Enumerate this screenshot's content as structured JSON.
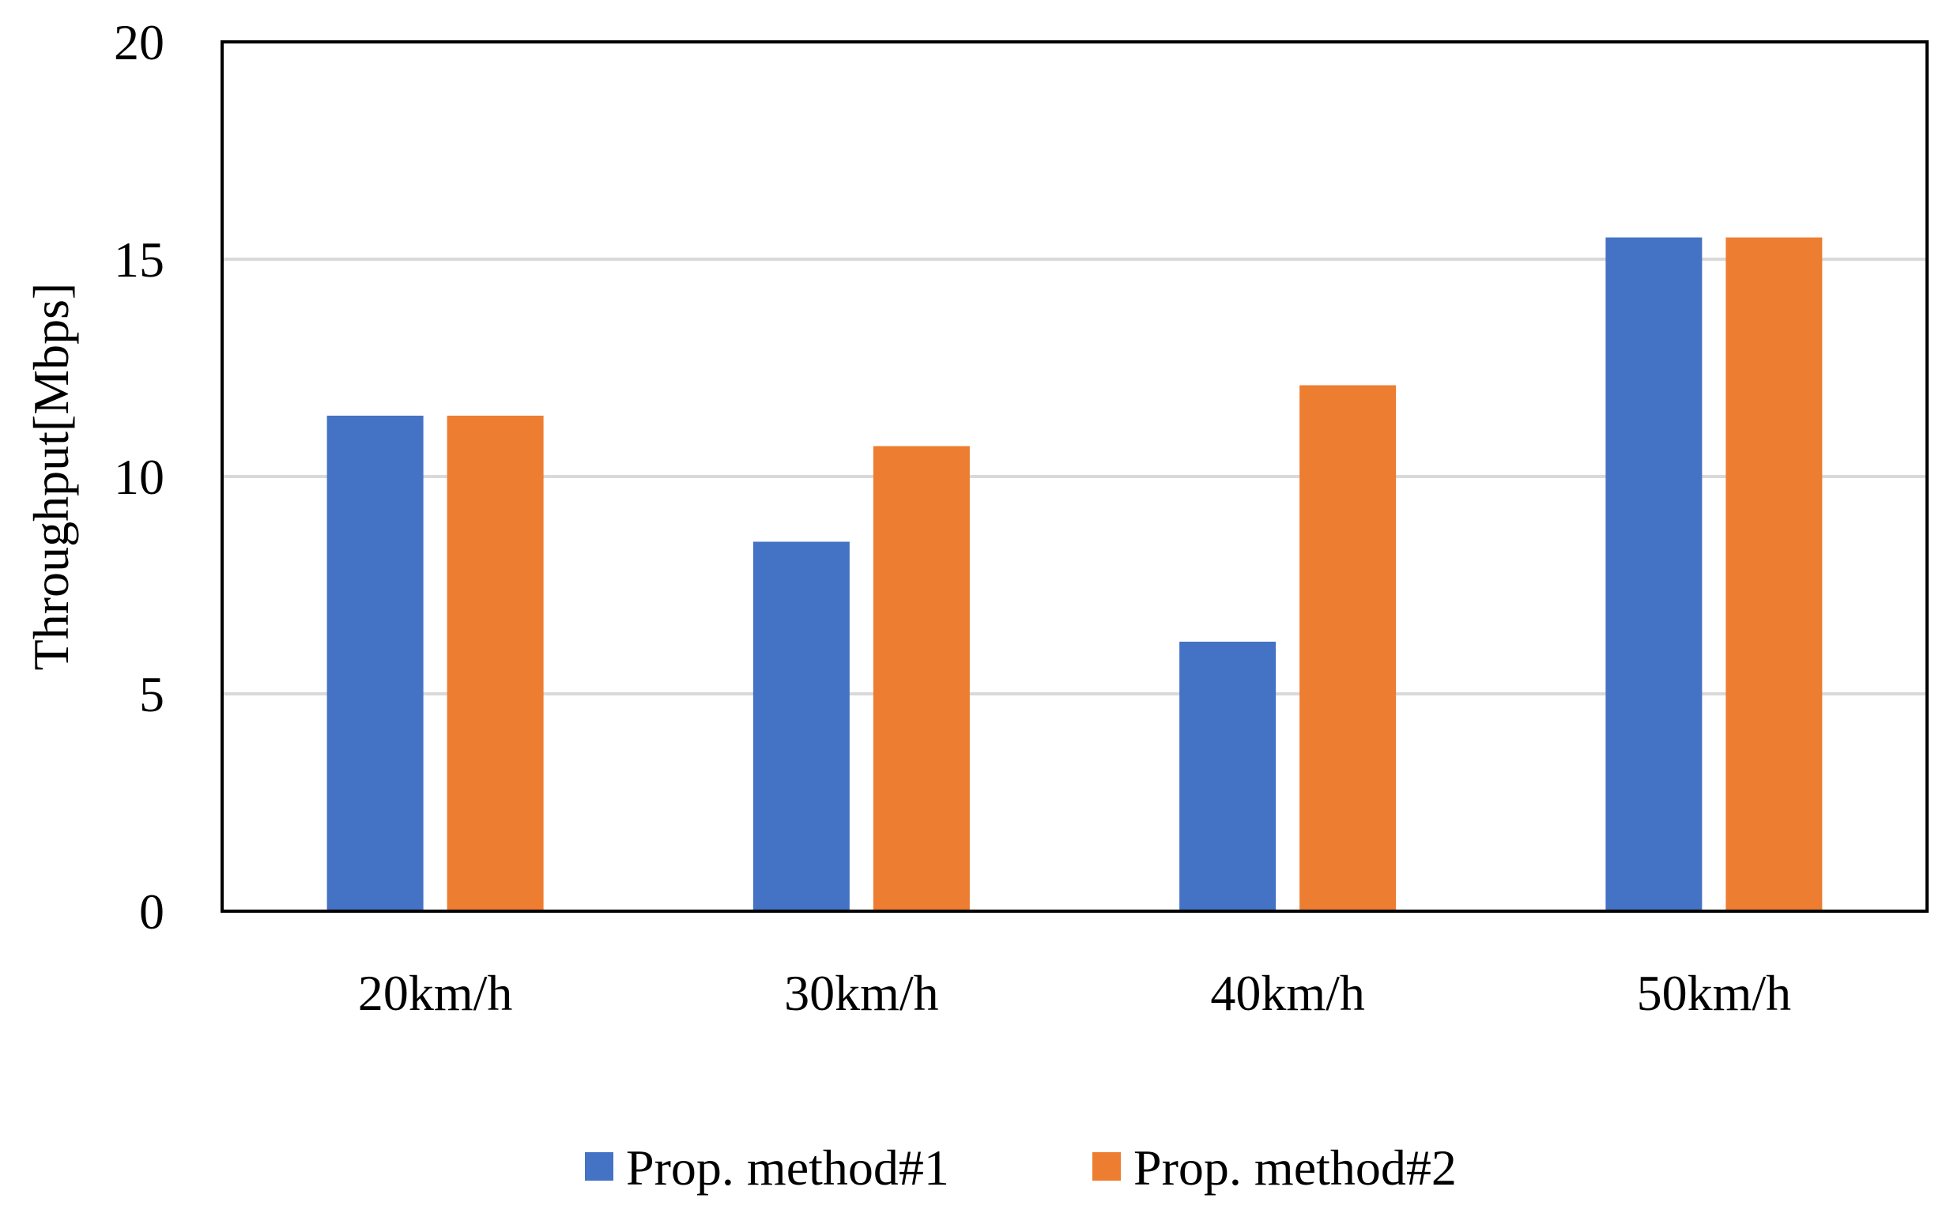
{
  "chart_data": {
    "type": "bar",
    "title": "",
    "xlabel": "",
    "ylabel": "Throughput[Mbps]",
    "categories": [
      "20km/h",
      "30km/h",
      "40km/h",
      "50km/h"
    ],
    "series": [
      {
        "name": "Prop. method#1",
        "color": "#4472C4",
        "values": [
          11.4,
          8.5,
          6.2,
          15.5
        ]
      },
      {
        "name": "Prop. method#2",
        "color": "#ED7D31",
        "values": [
          11.4,
          10.7,
          12.1,
          15.5
        ]
      }
    ],
    "ylim": [
      0,
      20
    ],
    "yticks": [
      0,
      5,
      10,
      15,
      20
    ],
    "grid": true,
    "gridColor": "#D9D9D9",
    "legend": "bottom-center"
  }
}
